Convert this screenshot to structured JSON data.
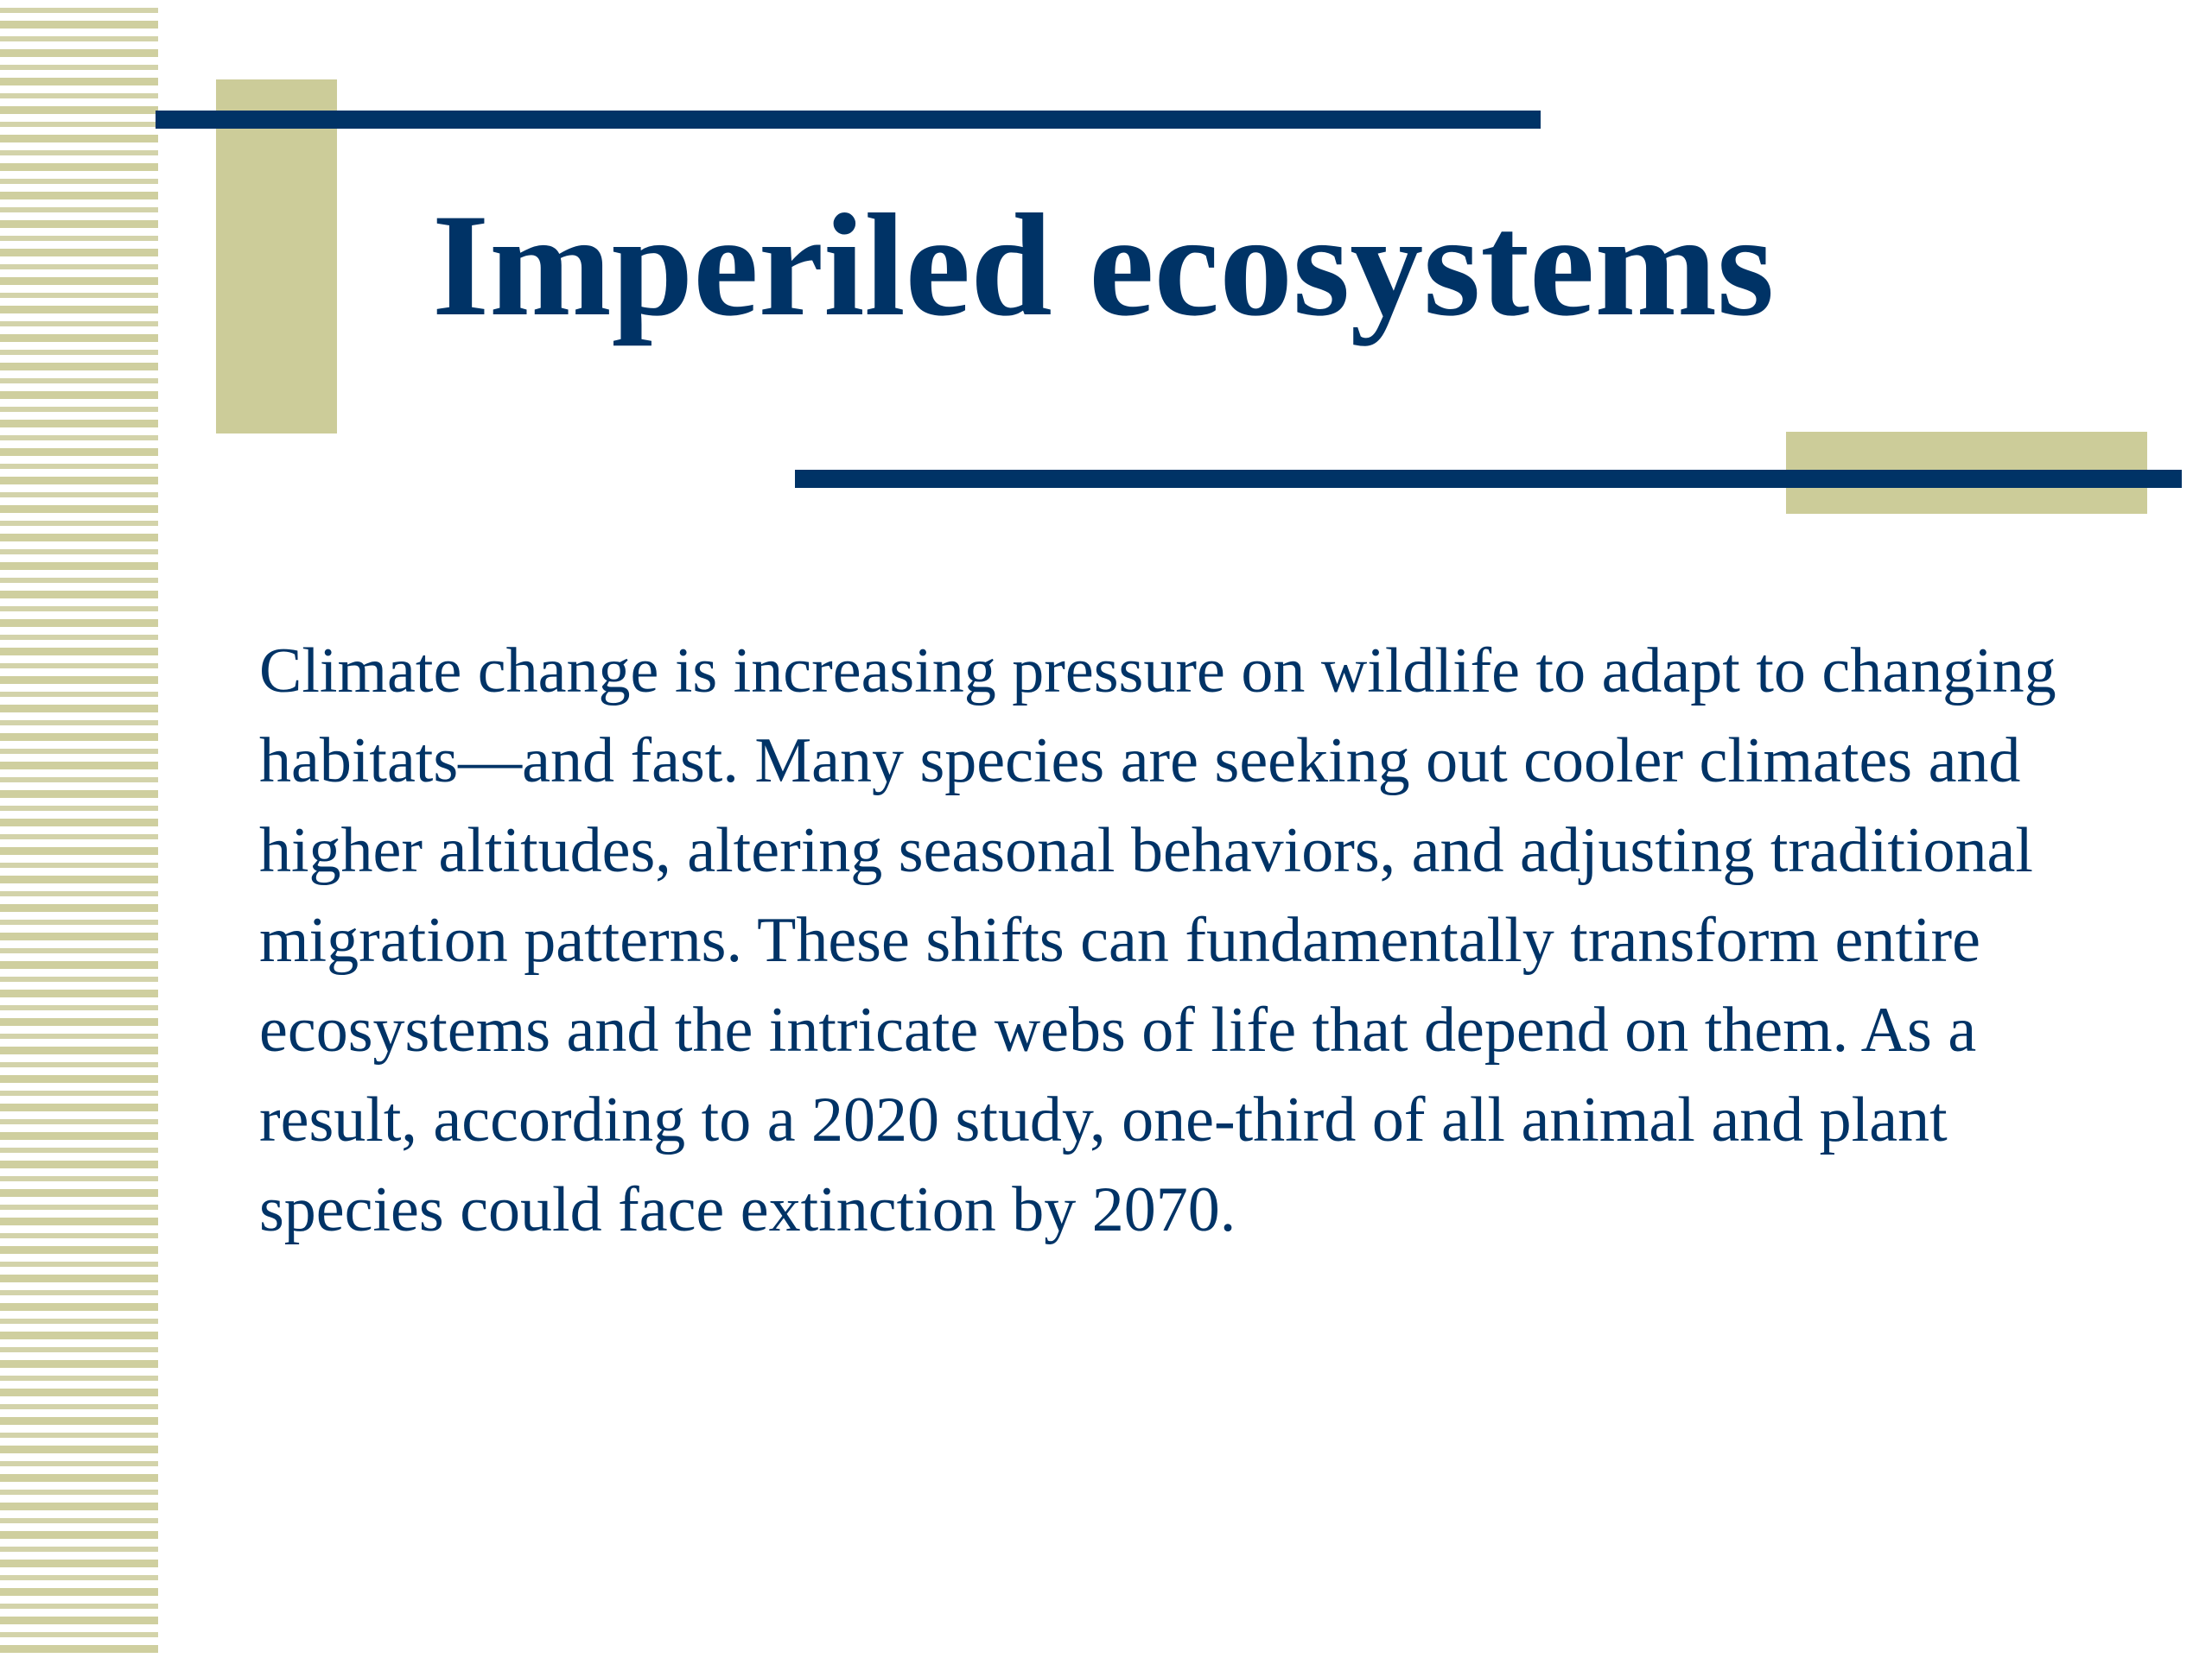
{
  "slide": {
    "title": "Imperiled ecosystems",
    "body": "Climate change is increasing pressure on wildlife to adapt to changing habitats—and fast. Many species are seeking out cooler climates and higher altitudes, altering seasonal behaviors, and adjusting traditional migration patterns. These shifts can fundamentally transform entire ecosystems and the intricate webs of life that depend on them. As a result, according to a 2020 study, one-third of all animal and plant species could face extinction by 2070."
  },
  "colors": {
    "navy": "#003366",
    "khaki": "#cccc99",
    "background": "#ffffff"
  }
}
